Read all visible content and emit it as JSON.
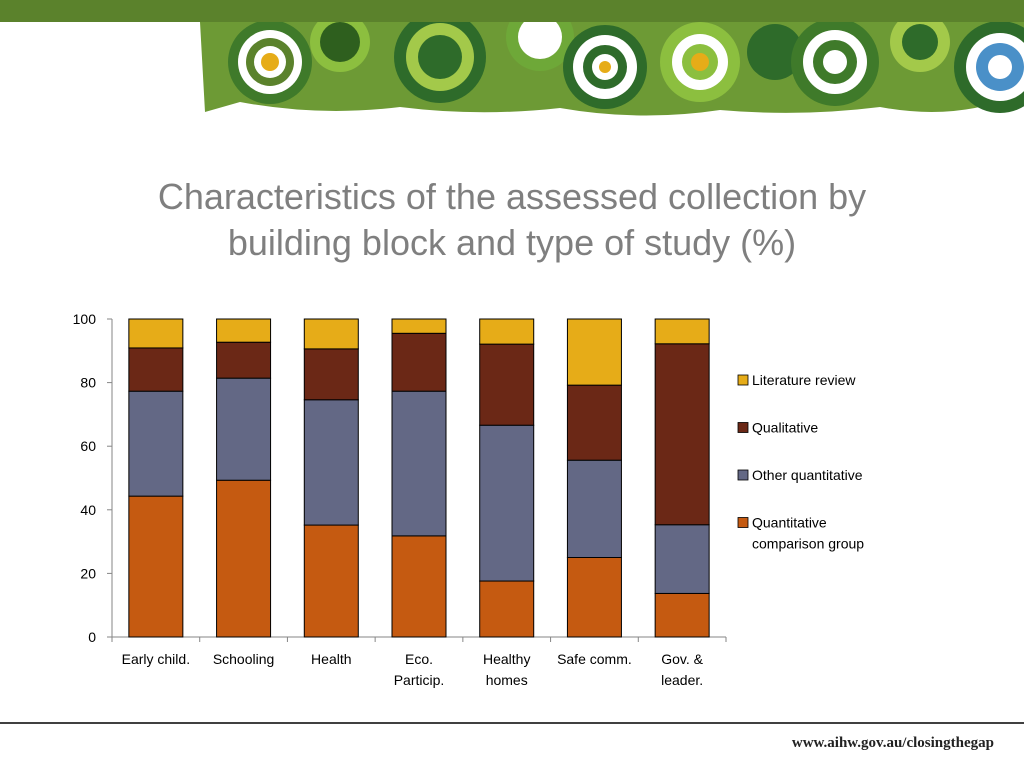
{
  "slide": {
    "title_line1": "Characteristics of the assessed collection by",
    "title_line2": "building block and type of study (%)",
    "footer_url": "www.aihw.gov.au/closingthegap"
  },
  "colors": {
    "bar_green": "#5b822c",
    "literature": "#e6ac18",
    "qualitative": "#6b2816",
    "other_quant": "#636885",
    "quant_comp": "#c55a11"
  },
  "chart_data": {
    "type": "bar",
    "stacked": true,
    "title": "Characteristics of the assessed collection by building block and type of study (%)",
    "categories": [
      [
        "Early child."
      ],
      [
        "Schooling"
      ],
      [
        "Health"
      ],
      [
        "Eco.",
        "Particip."
      ],
      [
        "Healthy",
        "homes"
      ],
      [
        "Safe comm."
      ],
      [
        "Gov. &",
        "leader."
      ]
    ],
    "series": [
      {
        "name": "Quantitative comparison group",
        "legend_lines": [
          "Quantitative",
          "comparison group"
        ],
        "color": "#c55a11",
        "values": [
          44.3,
          49.3,
          35.2,
          31.8,
          17.6,
          25.0,
          13.7
        ]
      },
      {
        "name": "Other quantitative",
        "legend_lines": [
          "Other quantitative"
        ],
        "color": "#636885",
        "values": [
          33.0,
          32.1,
          39.4,
          45.5,
          49.0,
          30.6,
          21.6
        ]
      },
      {
        "name": "Qualitative",
        "legend_lines": [
          "Qualitative"
        ],
        "color": "#6b2816",
        "values": [
          13.6,
          11.3,
          16.0,
          18.2,
          25.5,
          23.6,
          56.9
        ]
      },
      {
        "name": "Literature review",
        "legend_lines": [
          "Literature review"
        ],
        "color": "#e6ac18",
        "values": [
          9.1,
          7.3,
          9.4,
          4.5,
          7.9,
          20.8,
          7.8
        ]
      }
    ],
    "ylim": [
      0,
      100
    ],
    "yticks": [
      0,
      20,
      40,
      60,
      80,
      100
    ],
    "xlabel": "",
    "ylabel": "",
    "legend_position": "right",
    "grid": false
  }
}
